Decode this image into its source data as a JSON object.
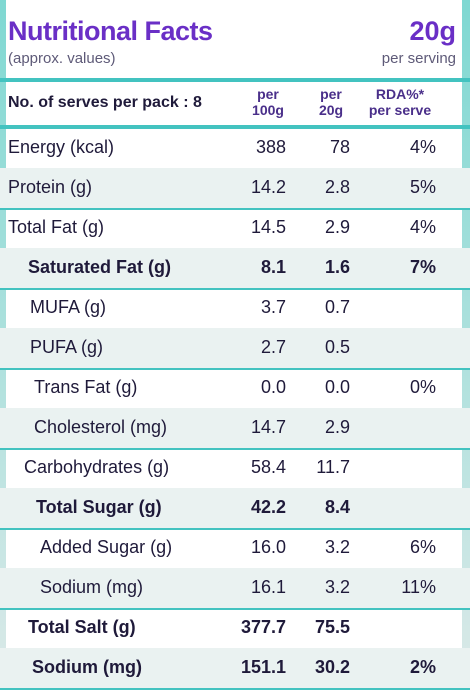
{
  "header": {
    "title": "Nutritional Facts",
    "subtitle": "(approx. values)",
    "serving_size": "20g",
    "serving_note": "per serving"
  },
  "columns": {
    "serves_label": "No. of serves per pack : 8",
    "col1_line1": "per",
    "col1_line2": "100g",
    "col2_line1": "per",
    "col2_line2": "20g",
    "col3_line1": "RDA%*",
    "col3_line2": "per serve"
  },
  "rows": [
    {
      "label": "Energy (kcal)",
      "per100g": "388",
      "per20g": "78",
      "rda": "4%"
    },
    {
      "label": "Protein (g)",
      "per100g": "14.2",
      "per20g": "2.8",
      "rda": "5%"
    },
    {
      "label": "Total Fat (g)",
      "per100g": "14.5",
      "per20g": "2.9",
      "rda": "4%"
    },
    {
      "label": "Saturated Fat (g)",
      "per100g": "8.1",
      "per20g": "1.6",
      "rda": "7%"
    },
    {
      "label": "MUFA (g)",
      "per100g": "3.7",
      "per20g": "0.7",
      "rda": ""
    },
    {
      "label": "PUFA (g)",
      "per100g": "2.7",
      "per20g": "0.5",
      "rda": ""
    },
    {
      "label": "Trans Fat (g)",
      "per100g": "0.0",
      "per20g": "0.0",
      "rda": "0%"
    },
    {
      "label": "Cholesterol (mg)",
      "per100g": "14.7",
      "per20g": "2.9",
      "rda": ""
    },
    {
      "label": "Carbohydrates (g)",
      "per100g": "58.4",
      "per20g": "11.7",
      "rda": ""
    },
    {
      "label": "Total Sugar (g)",
      "per100g": "42.2",
      "per20g": "8.4",
      "rda": ""
    },
    {
      "label": "Added Sugar (g)",
      "per100g": "16.0",
      "per20g": "3.2",
      "rda": "6%"
    },
    {
      "label": "Sodium (mg)",
      "per100g": "16.1",
      "per20g": "3.2",
      "rda": "11%"
    },
    {
      "label": "Total Salt (g)",
      "per100g": "377.7",
      "per20g": "75.5",
      "rda": ""
    },
    {
      "label": "Sodium (mg)",
      "per100g": "151.1",
      "per20g": "30.2",
      "rda": "2%"
    }
  ],
  "colors": {
    "title": "#6a2fc6",
    "rule": "#43c3c0",
    "text": "#1f1a3a"
  }
}
